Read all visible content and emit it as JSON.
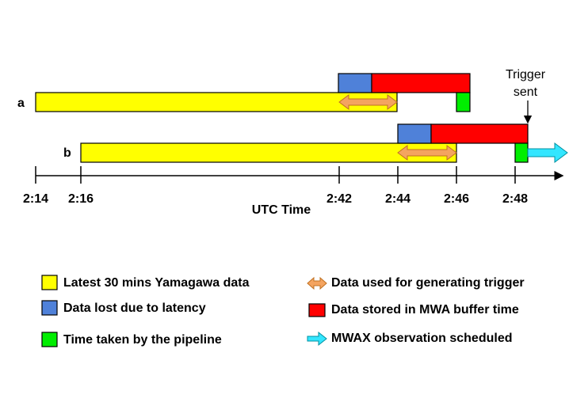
{
  "rows": [
    {
      "label": "a"
    },
    {
      "label": "b"
    }
  ],
  "annotation": {
    "line1": "Trigger",
    "line2": "sent"
  },
  "axis": {
    "title": "UTC Time",
    "ticks": [
      "2:14",
      "2:16",
      "2:42",
      "2:44",
      "2:46",
      "2:48"
    ]
  },
  "legend": [
    {
      "label": "Latest 30 mins Yamagawa data"
    },
    {
      "label": "Data lost due to latency"
    },
    {
      "label": "Time taken by the pipeline"
    },
    {
      "label": "Data used for generating trigger"
    },
    {
      "label": "Data stored in MWA buffer time"
    },
    {
      "label": "MWAX observation scheduled"
    }
  ]
}
